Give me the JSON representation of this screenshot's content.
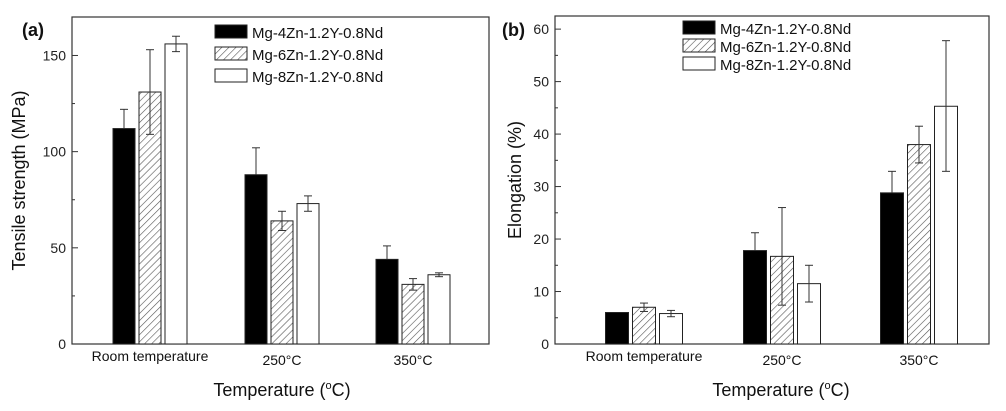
{
  "chart_data": [
    {
      "panel_label": "(a)",
      "type": "bar",
      "title": "",
      "xlabel": "Temperature (",
      "xlabel_sup": "o",
      "xlabel_end": "C)",
      "ylabel": "Tensile strength (MPa)",
      "ylim": [
        0,
        170
      ],
      "yticks": [
        0,
        50,
        100,
        150
      ],
      "yminor": [
        25,
        75,
        125
      ],
      "categories": [
        "Room temperature",
        "250°C",
        "350°C"
      ],
      "legend_position": "top-right",
      "series": [
        {
          "name": "Mg-4Zn-1.2Y-0.8Nd",
          "fill": "solid",
          "values": [
            112,
            88,
            44
          ],
          "err_low": [
            112,
            88,
            44
          ],
          "err_high": [
            122,
            102,
            51
          ]
        },
        {
          "name": "Mg-6Zn-1.2Y-0.8Nd",
          "fill": "hatched",
          "values": [
            131,
            64,
            31
          ],
          "err_low": [
            109,
            59,
            28
          ],
          "err_high": [
            153,
            69,
            34
          ]
        },
        {
          "name": "Mg-8Zn-1.2Y-0.8Nd",
          "fill": "empty",
          "values": [
            156,
            73,
            36
          ],
          "err_low": [
            152,
            69,
            35
          ],
          "err_high": [
            160,
            77,
            37
          ]
        }
      ]
    },
    {
      "panel_label": "(b)",
      "type": "bar",
      "title": "",
      "xlabel": "Temperature (",
      "xlabel_sup": "o",
      "xlabel_end": "C)",
      "ylabel": "Elongation (%)",
      "ylim": [
        0,
        62.5
      ],
      "yticks": [
        0,
        10,
        20,
        30,
        40,
        50,
        60
      ],
      "yminor": [
        5,
        15,
        25,
        35,
        45,
        55
      ],
      "categories": [
        "Room temperature",
        "250°C",
        "350°C"
      ],
      "legend_position": "top-center",
      "series": [
        {
          "name": "Mg-4Zn-1.2Y-0.8Nd",
          "fill": "solid",
          "values": [
            6,
            17.8,
            28.8
          ],
          "err_low": [
            6,
            17.8,
            28.8
          ],
          "err_high": [
            6,
            21.2,
            32.9
          ]
        },
        {
          "name": "Mg-6Zn-1.2Y-0.8Nd",
          "fill": "hatched",
          "values": [
            7,
            16.7,
            38
          ],
          "err_low": [
            6.2,
            7.4,
            34.5
          ],
          "err_high": [
            7.8,
            26,
            41.5
          ]
        },
        {
          "name": "Mg-8Zn-1.2Y-0.8Nd",
          "fill": "empty",
          "values": [
            5.8,
            11.5,
            45.3
          ],
          "err_low": [
            5.2,
            8,
            32.9
          ],
          "err_high": [
            6.4,
            15,
            57.8
          ]
        }
      ]
    }
  ]
}
